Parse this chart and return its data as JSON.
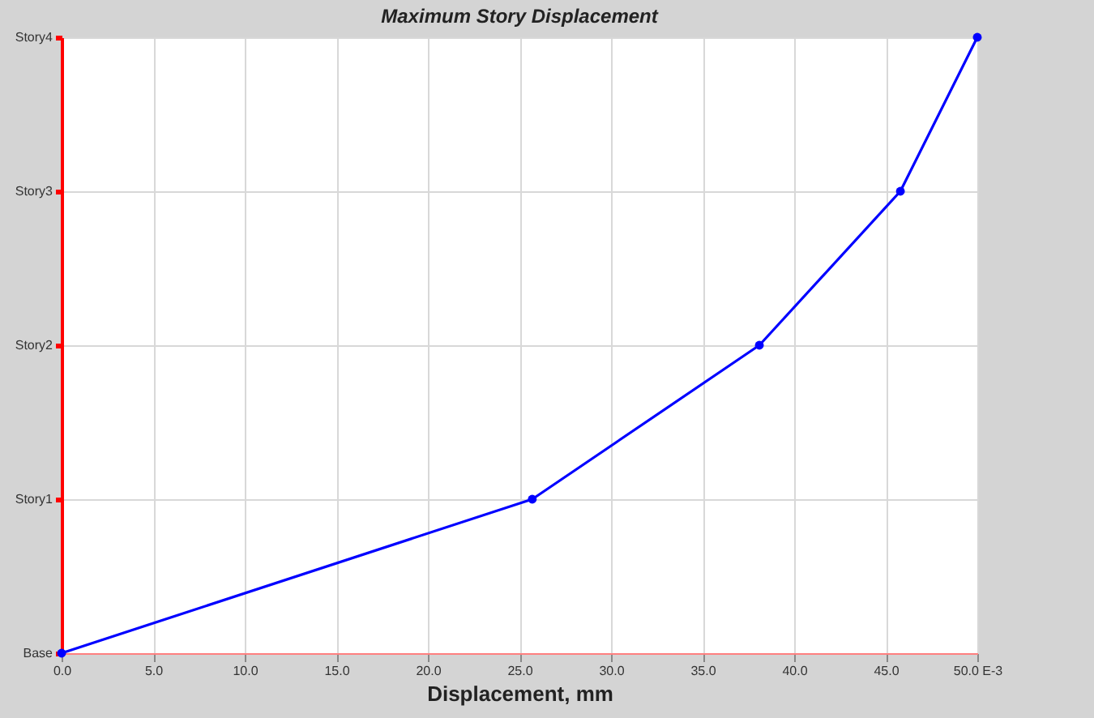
{
  "chart_data": {
    "type": "line",
    "orientation": "horizontal",
    "title": "Maximum Story Displacement",
    "xlabel": "Displacement, mm",
    "categories": [
      "Story4",
      "Story3",
      "Story2",
      "Story1",
      "Base"
    ],
    "series": [
      {
        "color": "#0000ff",
        "values": [
          50.0,
          45.8,
          38.1,
          25.7,
          0.0
        ]
      }
    ],
    "xlim": [
      0,
      50
    ],
    "xticks": [
      {
        "value": 0,
        "label": "0.0"
      },
      {
        "value": 5,
        "label": "5.0"
      },
      {
        "value": 10,
        "label": "10.0"
      },
      {
        "value": 15,
        "label": "15.0"
      },
      {
        "value": 20,
        "label": "20.0"
      },
      {
        "value": 25,
        "label": "25.0"
      },
      {
        "value": 30,
        "label": "30.0"
      },
      {
        "value": 35,
        "label": "35.0"
      },
      {
        "value": 40,
        "label": "40.0"
      },
      {
        "value": 45,
        "label": "45.0"
      },
      {
        "value": 50,
        "label": "50.0 E-3"
      }
    ],
    "grid": true,
    "marker": "circle",
    "line_style": "solid",
    "legend": false
  }
}
